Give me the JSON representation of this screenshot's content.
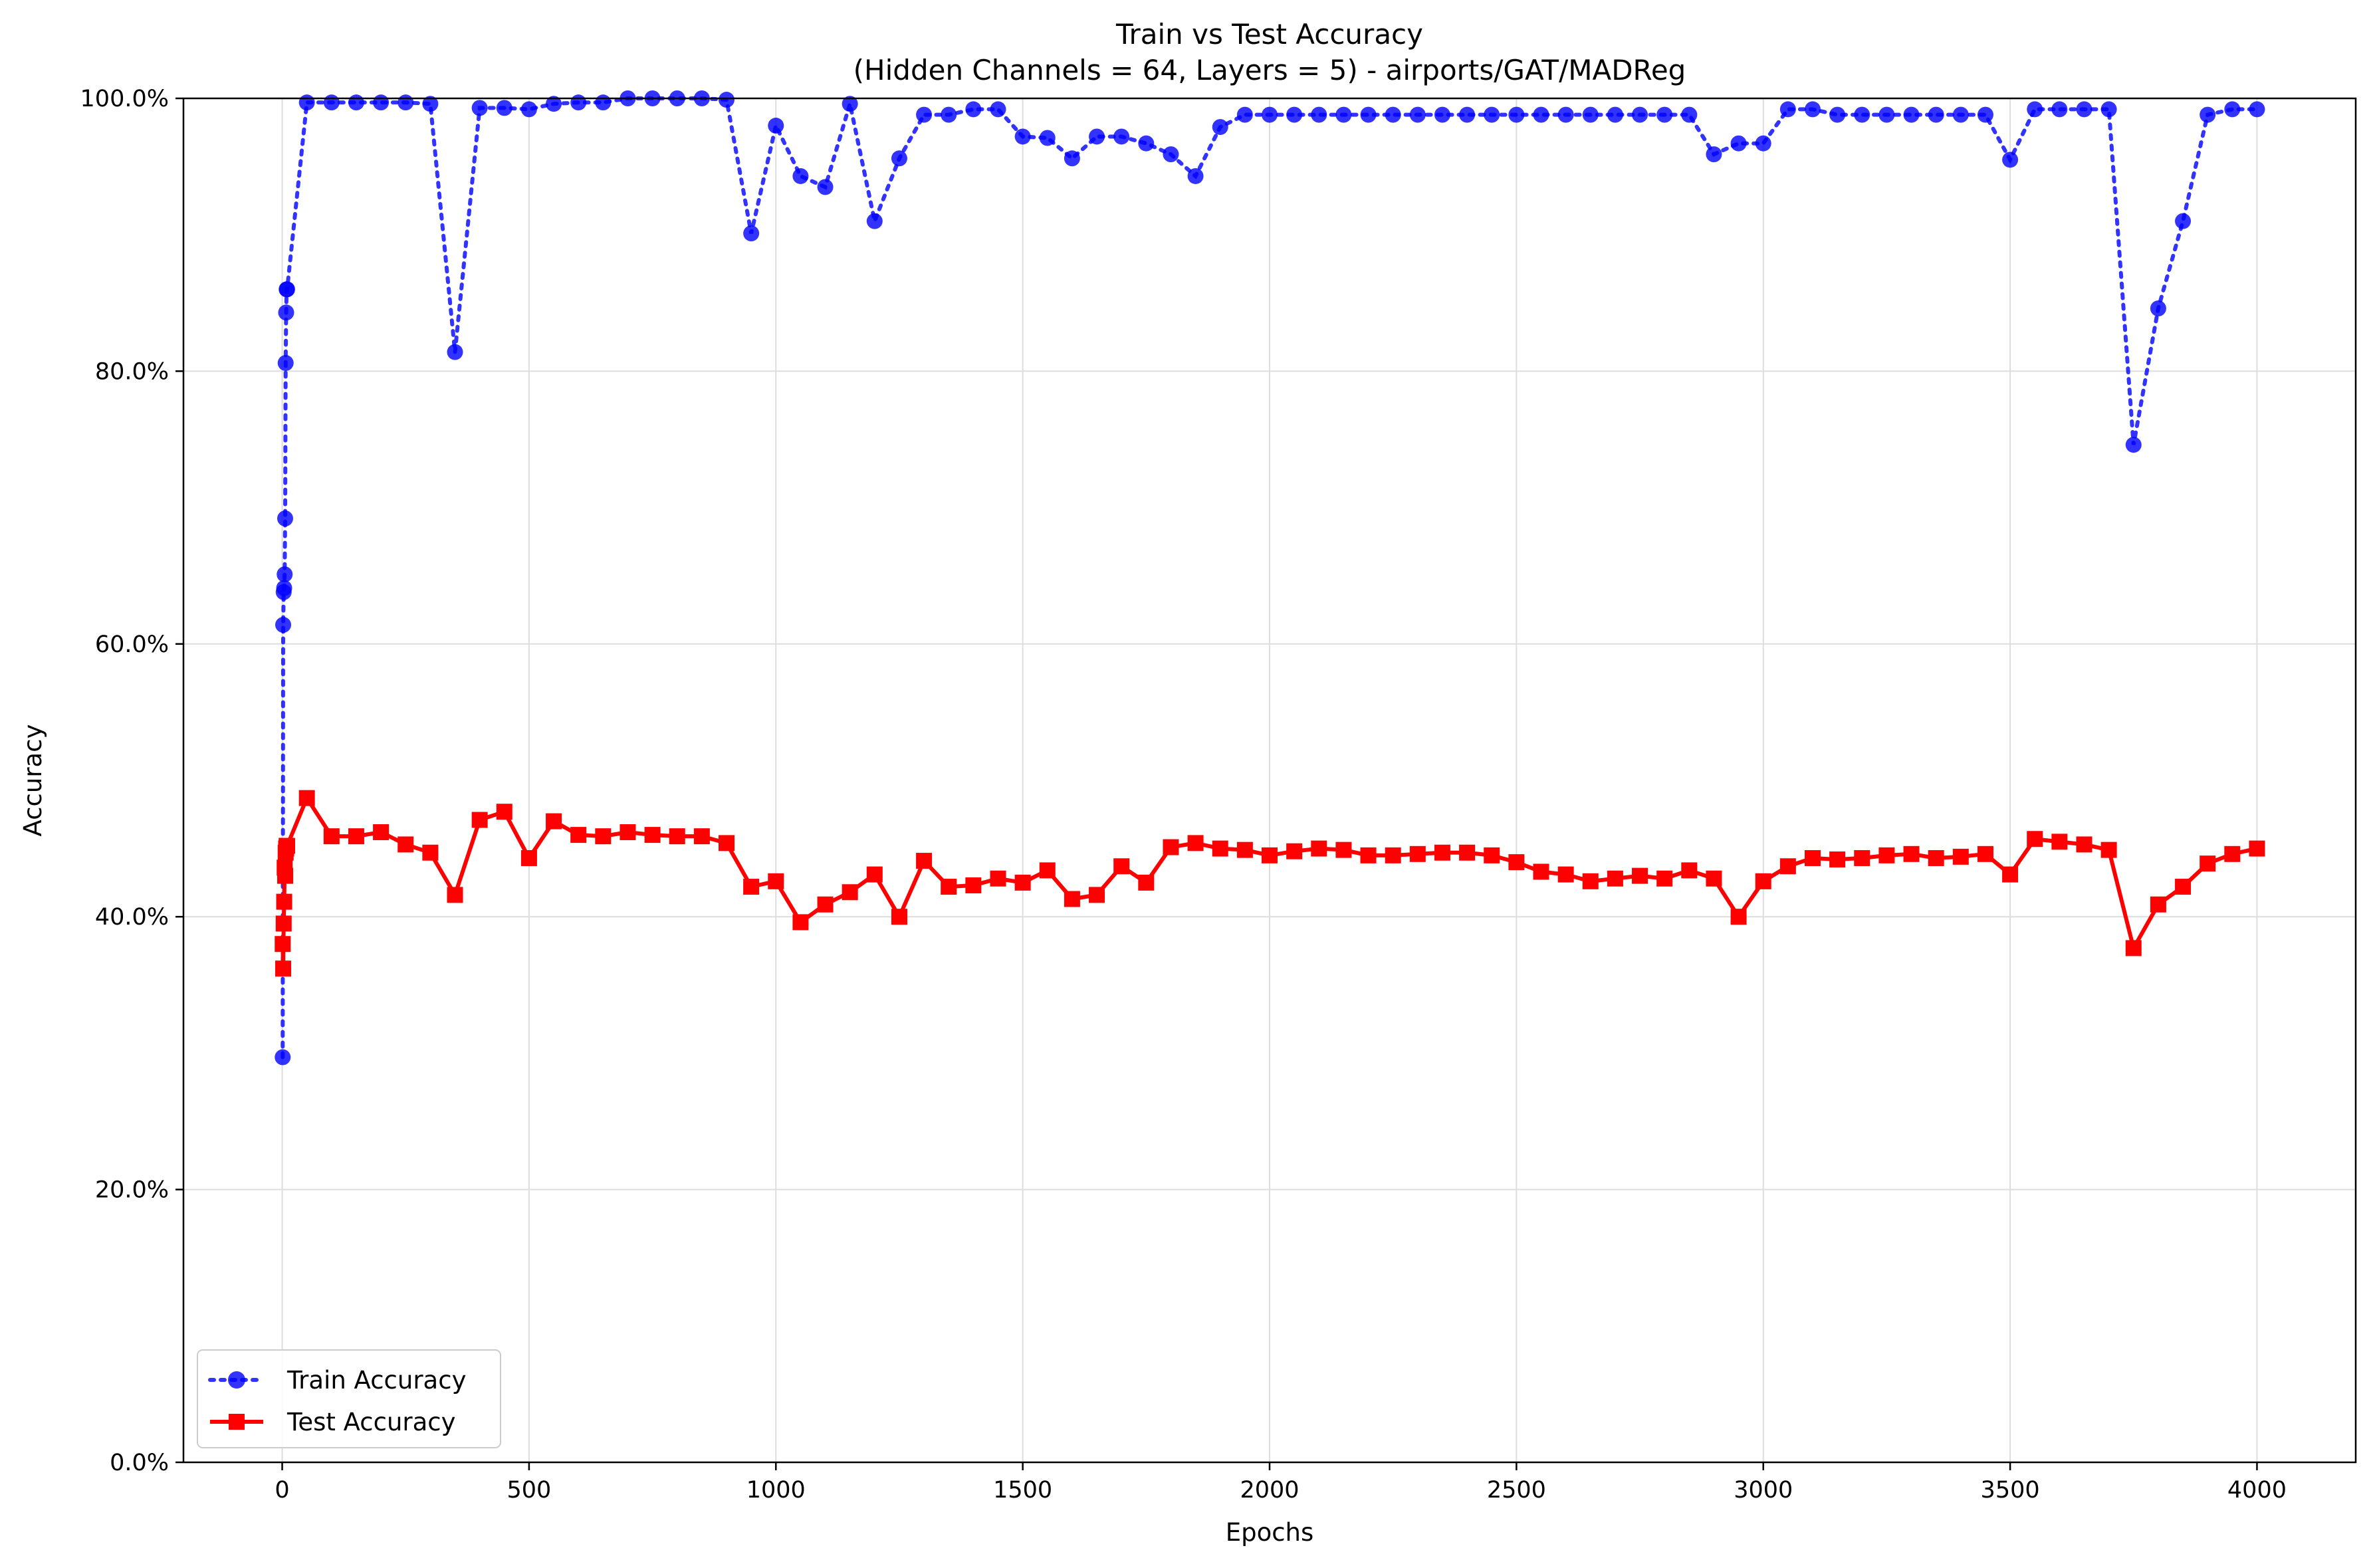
{
  "chart_data": {
    "type": "line",
    "title": "Train vs Test Accuracy",
    "subtitle": "(Hidden Channels = 64, Layers = 5) - airports/GAT/MADReg",
    "xlabel": "Epochs",
    "ylabel": "Accuracy",
    "xlim": [
      -200,
      4200
    ],
    "ylim": [
      0,
      1
    ],
    "x_ticks": [
      0,
      500,
      1000,
      1500,
      2000,
      2500,
      3000,
      3500,
      4000
    ],
    "x_tick_labels": [
      "0",
      "500",
      "1000",
      "1500",
      "2000",
      "2500",
      "3000",
      "3500",
      "4000"
    ],
    "y_ticks": [
      0,
      0.2,
      0.4,
      0.6,
      0.8,
      1.0
    ],
    "y_tick_labels": [
      "0.0%",
      "20.0%",
      "40.0%",
      "60.0%",
      "80.0%",
      "100.0%"
    ],
    "grid": true,
    "legend_position": "bottom-left",
    "x": [
      1,
      2,
      3,
      4,
      5,
      6,
      7,
      8,
      9,
      10,
      50,
      100,
      150,
      200,
      250,
      300,
      350,
      400,
      450,
      500,
      550,
      600,
      650,
      700,
      750,
      800,
      850,
      900,
      950,
      1000,
      1050,
      1100,
      1150,
      1200,
      1250,
      1300,
      1350,
      1400,
      1450,
      1500,
      1550,
      1600,
      1650,
      1700,
      1750,
      1800,
      1850,
      1900,
      1950,
      2000,
      2050,
      2100,
      2150,
      2200,
      2250,
      2300,
      2350,
      2400,
      2450,
      2500,
      2550,
      2600,
      2650,
      2700,
      2750,
      2800,
      2850,
      2900,
      2950,
      3000,
      3050,
      3100,
      3150,
      3200,
      3250,
      3300,
      3350,
      3400,
      3450,
      3500,
      3550,
      3600,
      3650,
      3700,
      3750,
      3800,
      3850,
      3900,
      3950,
      4000
    ],
    "series": [
      {
        "name": "Train Accuracy",
        "color": "#0000ff",
        "line_style": "dotted",
        "marker": "circle",
        "values": [
          0.297,
          0.614,
          0.638,
          0.641,
          0.651,
          0.692,
          0.806,
          0.843,
          0.86,
          0.86,
          0.997,
          0.997,
          0.997,
          0.997,
          0.997,
          0.996,
          0.814,
          0.993,
          0.993,
          0.992,
          0.996,
          0.997,
          0.997,
          1.0,
          1.0,
          1.0,
          1.0,
          0.999,
          0.901,
          0.98,
          0.943,
          0.935,
          0.996,
          0.91,
          0.956,
          0.988,
          0.988,
          0.992,
          0.992,
          0.972,
          0.971,
          0.956,
          0.972,
          0.972,
          0.967,
          0.959,
          0.943,
          0.979,
          0.988,
          0.988,
          0.988,
          0.988,
          0.988,
          0.988,
          0.988,
          0.988,
          0.988,
          0.988,
          0.988,
          0.988,
          0.988,
          0.988,
          0.988,
          0.988,
          0.988,
          0.988,
          0.988,
          0.959,
          0.967,
          0.967,
          0.992,
          0.992,
          0.988,
          0.988,
          0.988,
          0.988,
          0.988,
          0.988,
          0.988,
          0.955,
          0.992,
          0.992,
          0.992,
          0.992,
          0.746,
          0.846,
          0.91,
          0.988,
          0.992,
          0.992
        ]
      },
      {
        "name": "Test Accuracy",
        "color": "#ff0000",
        "line_style": "solid",
        "marker": "square",
        "values": [
          0.38,
          0.362,
          0.395,
          0.411,
          0.436,
          0.43,
          0.447,
          0.45,
          0.452,
          0.452,
          0.487,
          0.459,
          0.459,
          0.462,
          0.453,
          0.447,
          0.416,
          0.471,
          0.477,
          0.443,
          0.47,
          0.46,
          0.459,
          0.462,
          0.46,
          0.459,
          0.459,
          0.454,
          0.422,
          0.426,
          0.396,
          0.409,
          0.418,
          0.431,
          0.4,
          0.441,
          0.422,
          0.423,
          0.428,
          0.425,
          0.434,
          0.413,
          0.416,
          0.437,
          0.425,
          0.451,
          0.454,
          0.45,
          0.449,
          0.445,
          0.448,
          0.45,
          0.449,
          0.445,
          0.445,
          0.446,
          0.447,
          0.447,
          0.445,
          0.44,
          0.433,
          0.431,
          0.426,
          0.428,
          0.43,
          0.428,
          0.434,
          0.428,
          0.4,
          0.426,
          0.437,
          0.443,
          0.442,
          0.443,
          0.445,
          0.446,
          0.443,
          0.444,
          0.446,
          0.431,
          0.457,
          0.455,
          0.453,
          0.449,
          0.377,
          0.409,
          0.422,
          0.439,
          0.446,
          0.45
        ]
      }
    ]
  }
}
